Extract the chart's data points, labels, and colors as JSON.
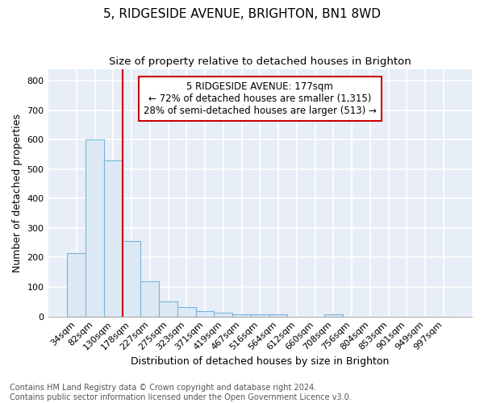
{
  "title1": "5, RIDGESIDE AVENUE, BRIGHTON, BN1 8WD",
  "title2": "Size of property relative to detached houses in Brighton",
  "xlabel": "Distribution of detached houses by size in Brighton",
  "ylabel": "Number of detached properties",
  "bin_labels": [
    "34sqm",
    "82sqm",
    "130sqm",
    "178sqm",
    "227sqm",
    "275sqm",
    "323sqm",
    "371sqm",
    "419sqm",
    "467sqm",
    "516sqm",
    "564sqm",
    "612sqm",
    "660sqm",
    "708sqm",
    "756sqm",
    "804sqm",
    "853sqm",
    "901sqm",
    "949sqm",
    "997sqm"
  ],
  "bar_heights": [
    215,
    600,
    530,
    255,
    118,
    50,
    33,
    18,
    13,
    8,
    8,
    8,
    0,
    0,
    8,
    0,
    0,
    0,
    0,
    0,
    0
  ],
  "bar_color": "#dce9f5",
  "bar_edge_color": "#7ab3d9",
  "property_line_color": "#cc0000",
  "property_line_x": 2.5,
  "annotation_line1": "5 RIDGESIDE AVENUE: 177sqm",
  "annotation_line2": "← 72% of detached houses are smaller (1,315)",
  "annotation_line3": "28% of semi-detached houses are larger (513) →",
  "annotation_box_color": "white",
  "annotation_box_edge_color": "#cc0000",
  "ylim": [
    0,
    840
  ],
  "yticks": [
    0,
    100,
    200,
    300,
    400,
    500,
    600,
    700,
    800
  ],
  "plot_bg_color": "#e8eef8",
  "grid_color": "white",
  "footer": "Contains HM Land Registry data © Crown copyright and database right 2024.\nContains public sector information licensed under the Open Government Licence v3.0.",
  "title1_fontsize": 11,
  "title2_fontsize": 9.5,
  "xlabel_fontsize": 9,
  "ylabel_fontsize": 9,
  "tick_fontsize": 8,
  "footer_fontsize": 7,
  "annotation_fontsize": 8.5
}
